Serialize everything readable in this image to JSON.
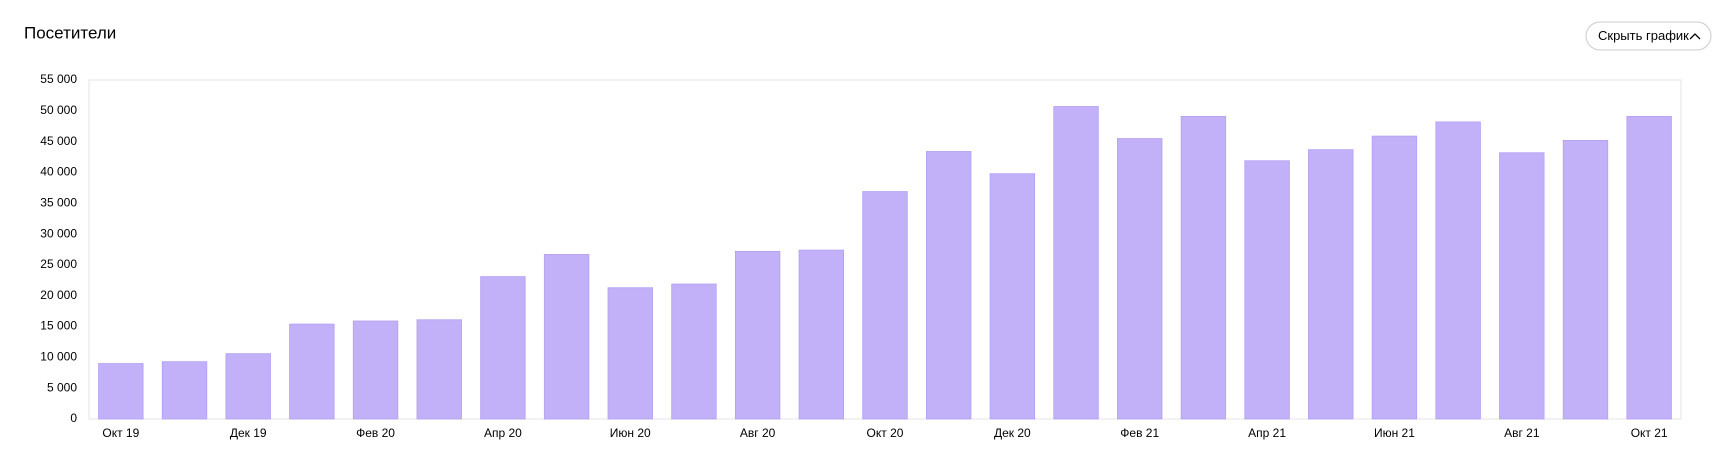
{
  "chart_data": {
    "type": "bar",
    "title": "Посетители",
    "button": "Скрыть график",
    "categories": [
      "Окт 19",
      null,
      "Дек 19",
      null,
      "Фев 20",
      null,
      "Апр 20",
      null,
      "Июн 20",
      null,
      "Авг 20",
      null,
      "Окт 20",
      null,
      "Дек 20",
      null,
      "Фев 21",
      null,
      "Апр 21",
      null,
      "Июн 21",
      null,
      "Авг 21",
      null,
      "Окт 21"
    ],
    "values": [
      9000,
      9300,
      10600,
      15400,
      15900,
      16100,
      23100,
      26700,
      21300,
      21900,
      27200,
      27400,
      36900,
      43400,
      39800,
      50700,
      45500,
      49100,
      41900,
      43700,
      45900,
      48200,
      43200,
      45200,
      49100
    ],
    "color": "#c2b1f8",
    "ylim": [
      0,
      55000
    ],
    "yticks": [
      0,
      {
        "value": 5000,
        "label": "5 000"
      },
      {
        "value": 10000,
        "label": "10 000"
      },
      {
        "value": 15000,
        "label": "15 000"
      },
      {
        "value": 20000,
        "label": "20 000"
      },
      {
        "value": 25000,
        "label": "25 000"
      },
      {
        "value": 30000,
        "label": "30 000"
      },
      {
        "value": 35000,
        "label": "35 000"
      },
      {
        "value": 40000,
        "label": "40 000"
      },
      {
        "value": 45000,
        "label": "45 000"
      },
      {
        "value": 50000,
        "label": "50 000"
      },
      {
        "value": 55000,
        "label": "55 000"
      }
    ],
    "grid": true
  }
}
